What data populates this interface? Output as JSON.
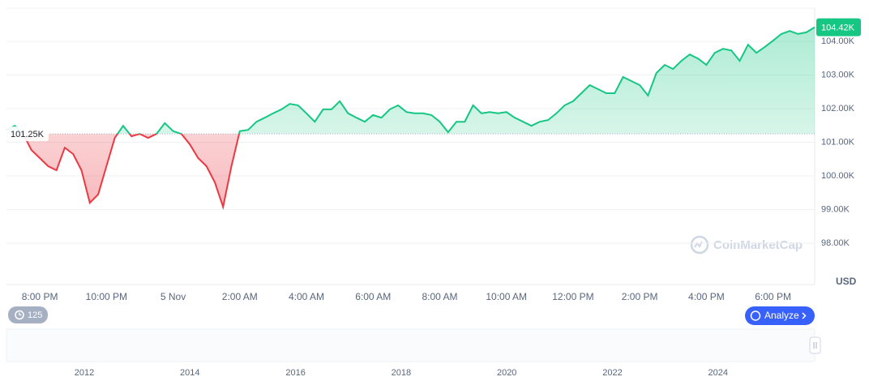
{
  "chart_data": {
    "type": "line",
    "categories": [
      null,
      null,
      null,
      null,
      "8:00 PM",
      null,
      null,
      null,
      null,
      null,
      null,
      null,
      "10:00 PM",
      null,
      null,
      null,
      null,
      null,
      null,
      null,
      "5 Nov",
      null,
      null,
      null,
      null,
      null,
      null,
      null,
      "2:00 AM",
      null,
      null,
      null,
      null,
      null,
      null,
      null,
      "4:00 AM",
      null,
      null,
      null,
      null,
      null,
      null,
      null,
      "6:00 AM",
      null,
      null,
      null,
      null,
      null,
      null,
      null,
      "8:00 AM",
      null,
      null,
      null,
      null,
      null,
      null,
      null,
      "10:00 AM",
      null,
      null,
      null,
      null,
      null,
      null,
      null,
      "12:00 PM",
      null,
      null,
      null,
      null,
      null,
      null,
      null,
      "2:00 PM",
      null,
      null,
      null,
      null,
      null,
      null,
      null,
      "4:00 PM",
      null,
      null,
      null,
      null,
      null,
      null,
      null,
      "6:00 PM",
      null,
      null,
      null,
      null,
      null
    ],
    "values": [
      101.37,
      101.49,
      101.25,
      100.77,
      100.53,
      100.29,
      100.17,
      100.84,
      100.65,
      100.17,
      99.2,
      99.45,
      100.29,
      101.13,
      101.49,
      101.18,
      101.25,
      101.13,
      101.25,
      101.57,
      101.33,
      101.25,
      100.94,
      100.53,
      100.29,
      99.81,
      99.08,
      100.29,
      101.33,
      101.37,
      101.61,
      101.73,
      101.86,
      101.98,
      102.14,
      102.1,
      101.86,
      101.61,
      101.98,
      101.98,
      102.22,
      101.86,
      101.73,
      101.61,
      101.81,
      101.73,
      101.98,
      102.1,
      101.9,
      101.86,
      101.86,
      101.81,
      101.61,
      101.3,
      101.61,
      101.61,
      102.1,
      101.86,
      101.9,
      101.86,
      101.9,
      101.73,
      101.61,
      101.49,
      101.61,
      101.66,
      101.86,
      102.1,
      102.22,
      102.46,
      102.7,
      102.58,
      102.46,
      102.46,
      102.94,
      102.82,
      102.7,
      102.39,
      103.06,
      103.3,
      103.18,
      103.42,
      103.61,
      103.49,
      103.3,
      103.66,
      103.78,
      103.73,
      103.42,
      103.9,
      103.66,
      103.83,
      104.02,
      104.22,
      104.31,
      104.22,
      104.27,
      104.42
    ],
    "baseline": {
      "value": 101.25,
      "label": "101.25K"
    },
    "last_price": {
      "value": 104.42,
      "label": "104.42K"
    },
    "ylim": [
      96.77,
      104.99
    ],
    "yticks": [
      {
        "value": 98,
        "label": "98.00K"
      },
      {
        "value": 99,
        "label": "99.00K"
      },
      {
        "value": 100,
        "label": "100.00K"
      },
      {
        "value": 101,
        "label": "101.00K"
      },
      {
        "value": 102,
        "label": "102.00K"
      },
      {
        "value": 103,
        "label": "103.00K"
      },
      {
        "value": 104,
        "label": "104.00K"
      }
    ],
    "y_unit": "USD",
    "grid": true,
    "up_color": "#16c784",
    "down_color": "#ea3943"
  },
  "ui": {
    "watermark": "CoinMarketCap",
    "history_badge": "125",
    "analyze_button": "Analyze"
  },
  "navigator": {
    "years": [
      "2012",
      "2014",
      "2016",
      "2018",
      "2020",
      "2022",
      "2024"
    ]
  }
}
